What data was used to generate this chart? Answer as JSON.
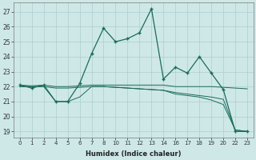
{
  "xlabel": "Humidex (Indice chaleur)",
  "bg_color": "#cee8e8",
  "grid_color": "#b0cccc",
  "line_color": "#1a6b5a",
  "ylim": [
    18.6,
    27.6
  ],
  "yticks": [
    19,
    20,
    21,
    22,
    23,
    24,
    25,
    26,
    27
  ],
  "all_x": [
    0,
    1,
    2,
    4,
    5,
    6,
    7,
    8,
    10,
    11,
    12,
    13,
    14,
    16,
    17,
    18,
    19,
    20,
    22,
    23
  ],
  "xtick_labels": [
    "0",
    "1",
    "2",
    "4",
    "5",
    "6",
    "7",
    "8",
    "10",
    "11",
    "12",
    "13",
    "14",
    "16",
    "17",
    "18",
    "19",
    "20",
    "22",
    "23"
  ],
  "line1_y": [
    22.1,
    21.9,
    22.1,
    21.0,
    21.0,
    22.2,
    24.2,
    25.9,
    25.0,
    25.2,
    25.6,
    27.2,
    22.5,
    23.3,
    22.9,
    24.0,
    22.9,
    21.8,
    19.0,
    19.0
  ],
  "line2_y": [
    22.1,
    22.05,
    22.1,
    22.0,
    22.0,
    22.05,
    22.1,
    22.1,
    22.1,
    22.1,
    22.1,
    22.1,
    22.1,
    22.0,
    22.0,
    22.0,
    22.0,
    21.95,
    21.9,
    21.85
  ],
  "line3_y": [
    22.0,
    22.0,
    22.0,
    21.9,
    21.9,
    21.95,
    22.0,
    22.0,
    21.95,
    21.9,
    21.85,
    21.8,
    21.75,
    21.6,
    21.5,
    21.4,
    21.3,
    21.15,
    19.1,
    19.0
  ],
  "line4_y": [
    22.0,
    22.0,
    22.0,
    21.0,
    21.0,
    21.3,
    22.0,
    22.0,
    21.95,
    21.9,
    21.85,
    21.8,
    21.75,
    21.5,
    21.4,
    21.3,
    21.1,
    20.8,
    19.1,
    19.0
  ]
}
